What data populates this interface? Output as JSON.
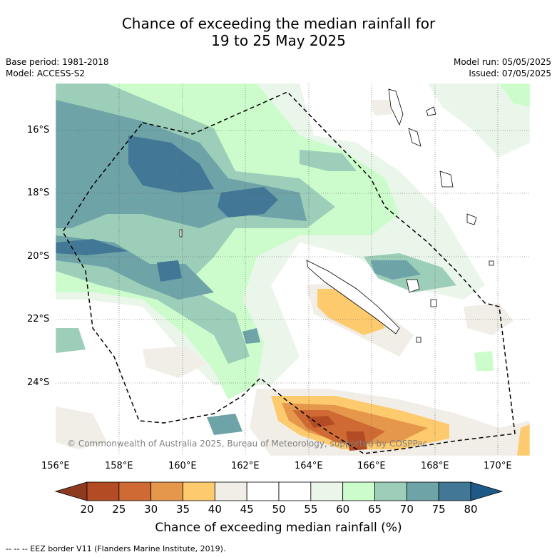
{
  "title_line1": "Chance of exceeding the median rainfall for",
  "title_line2": "19 to 25 May 2025",
  "meta_left": [
    "Base period: 1981-2018",
    "Model: ACCESS-S2"
  ],
  "meta_right": [
    "Model run: 05/05/2025",
    "Issued: 07/05/2025"
  ],
  "copyright": "© Commonwealth of Australia 2025, Bureau of Meteorology, supported by COSPPac",
  "lat_labels": [
    "16°S",
    "18°S",
    "20°S",
    "22°S",
    "24°S"
  ],
  "lon_labels": [
    "156°E",
    "158°E",
    "160°E",
    "162°E",
    "164°E",
    "166°E",
    "168°E",
    "170°E"
  ],
  "colorbar": {
    "title": "Chance of exceeding median rainfall (%)",
    "ticks": [
      "20",
      "25",
      "30",
      "35",
      "40",
      "45",
      "50",
      "55",
      "60",
      "65",
      "70",
      "75",
      "80"
    ],
    "colors": [
      "#8e3a1e",
      "#b34c24",
      "#cf6a34",
      "#e5984c",
      "#fdcb6e",
      "#f1ede7",
      "#ffffff",
      "#ffffff",
      "#eaf6ea",
      "#ccfccc",
      "#9dceb9",
      "#6ea3a8",
      "#427896",
      "#1e5a88"
    ]
  },
  "footer": "--  --  -- EEZ border V11 (Flanders Marine Institute, 2019)."
}
